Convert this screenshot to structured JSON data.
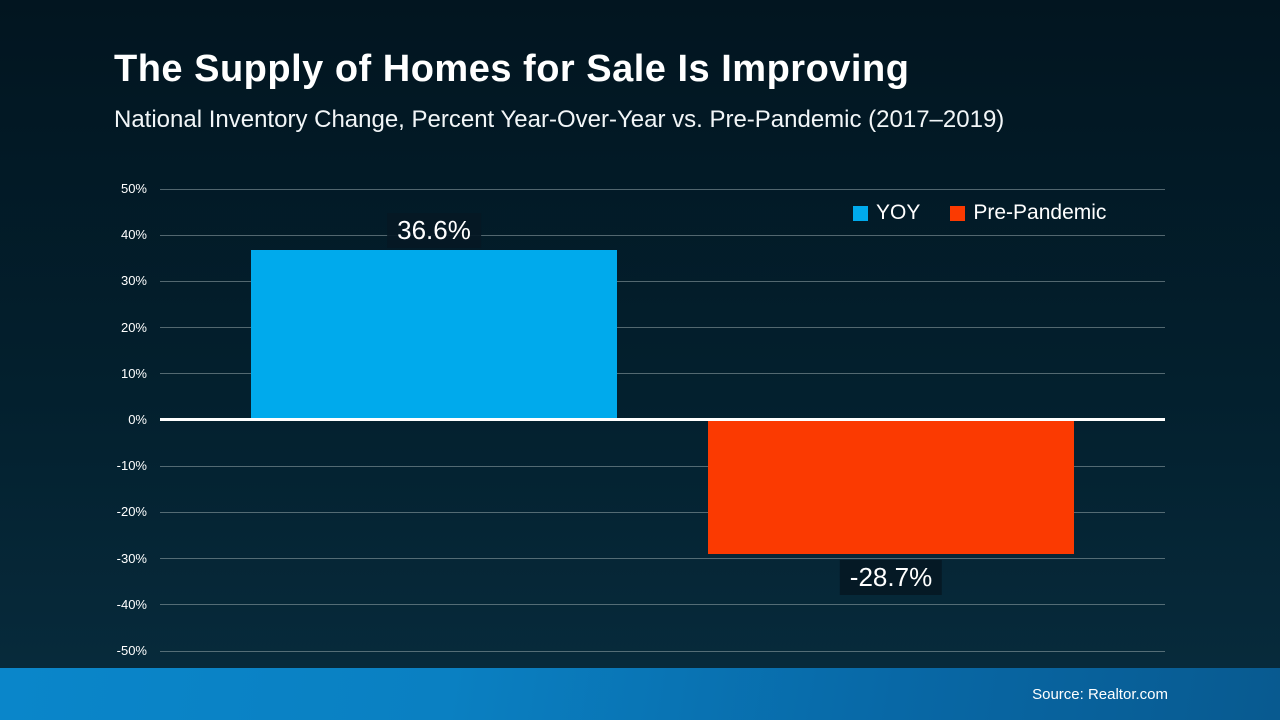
{
  "slide": {
    "title": "The Supply of Homes for Sale Is Improving",
    "subtitle": "National Inventory Change, Percent Year-Over-Year vs. Pre-Pandemic (2017–2019)",
    "source": "Source: Realtor.com"
  },
  "colors": {
    "yoy_blue": "#00aaec",
    "pre_pandemic_orange": "#fb3a01",
    "background_top": "#021520",
    "background_bottom": "#082c3d",
    "footer_blue_left": "#0a86ca",
    "footer_blue_right": "#085a90",
    "gridline_gray": "#96a5aa",
    "zero_axis_white": "#ffffff",
    "text_white": "#ffffff"
  },
  "chart_data": {
    "type": "bar",
    "title": "The Supply of Homes for Sale Is Improving",
    "subtitle": "National Inventory Change, Percent Year-Over-Year vs. Pre-Pandemic (2017–2019)",
    "categories": [
      "YOY",
      "Pre-Pandemic"
    ],
    "series": [
      {
        "name": "YOY",
        "value": 36.6,
        "value_label": "36.6%",
        "color": "#00aaec"
      },
      {
        "name": "Pre-Pandemic",
        "value": -28.7,
        "value_label": "-28.7%",
        "color": "#fb3a01"
      }
    ],
    "ylim": [
      -50,
      50
    ],
    "ytick_step": 10,
    "ytick_labels": [
      "50%",
      "40%",
      "30%",
      "20%",
      "10%",
      "0%",
      "-10%",
      "-20%",
      "-30%",
      "-40%",
      "-50%"
    ],
    "grid": true,
    "zero_axis_emphasized": true,
    "legend_position": "top-right",
    "legend": [
      {
        "label": "YOY",
        "color": "#00aaec"
      },
      {
        "label": "Pre-Pandemic",
        "color": "#fb3a01"
      }
    ]
  }
}
